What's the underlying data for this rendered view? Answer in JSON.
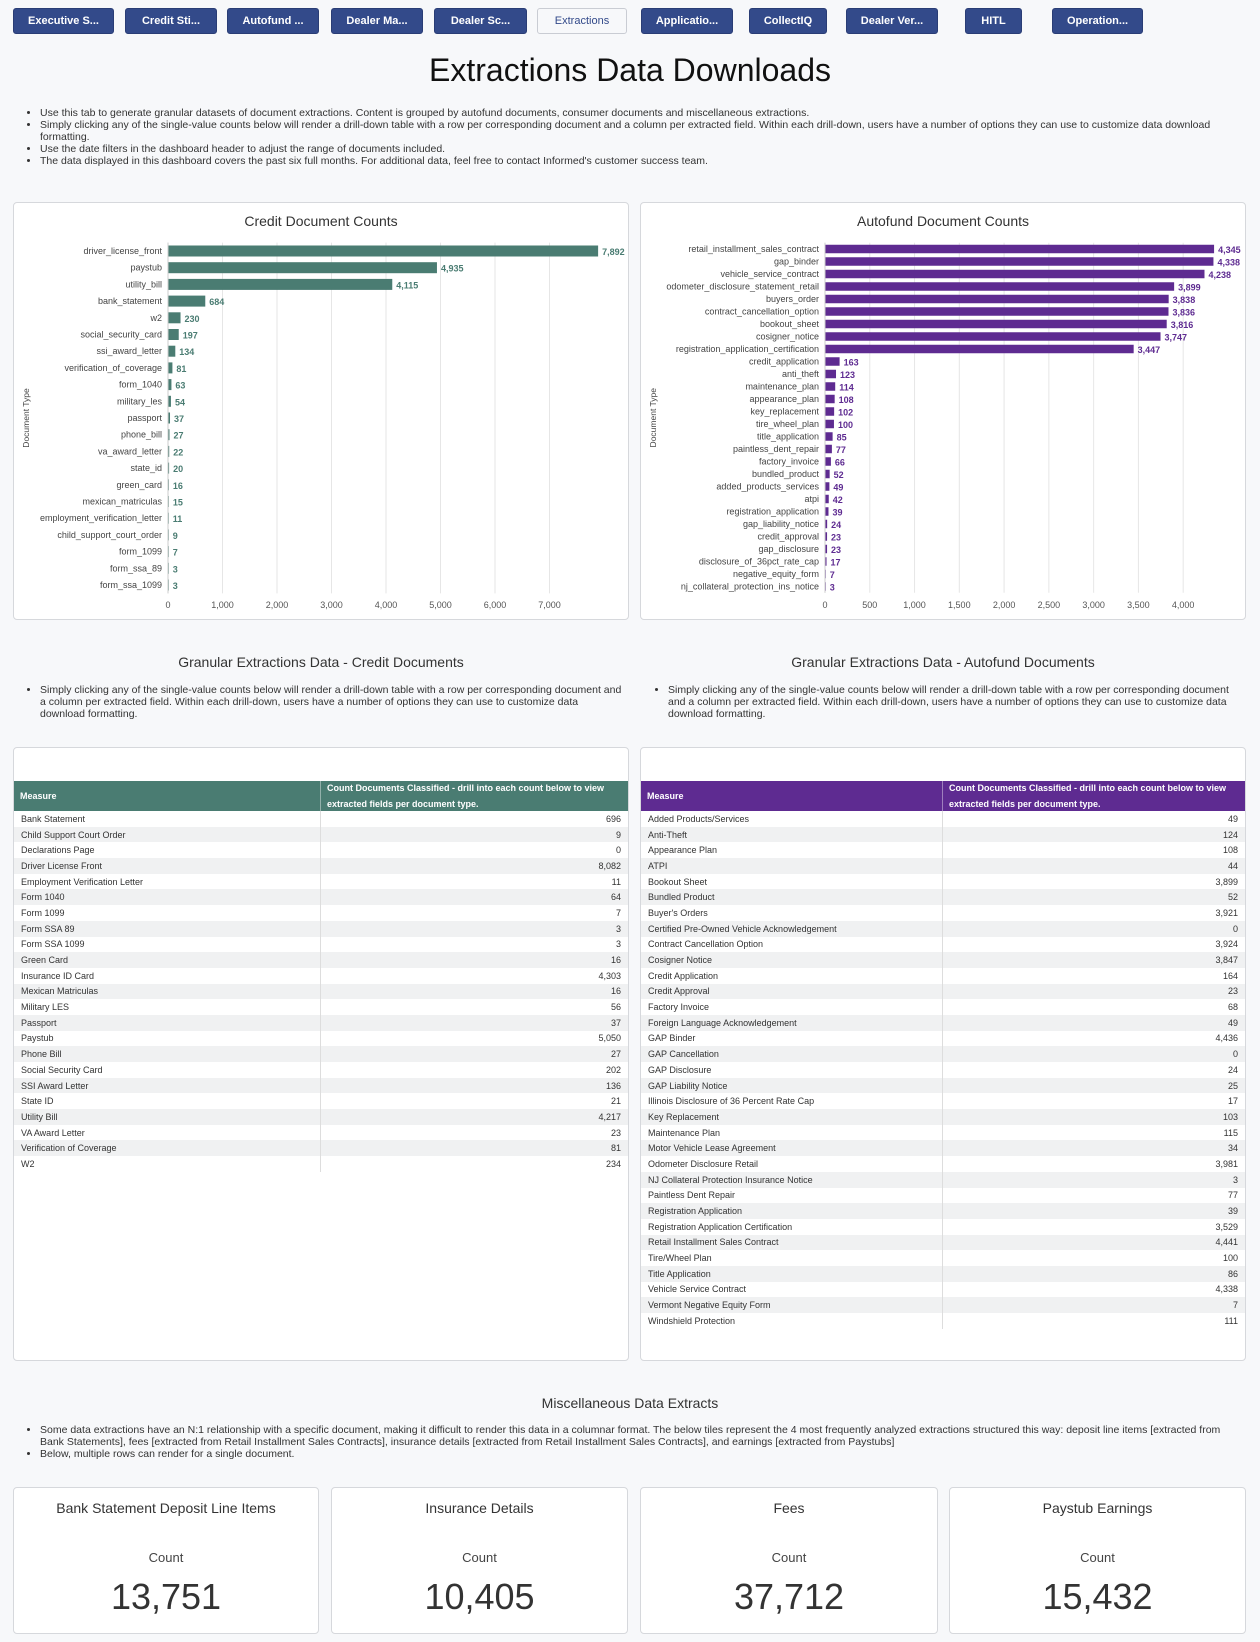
{
  "nav": {
    "tabs": [
      {
        "label": "Executive S..."
      },
      {
        "label": "Credit Sti..."
      },
      {
        "label": "Autofund ..."
      },
      {
        "label": "Dealer Ma..."
      },
      {
        "label": "Dealer Sc..."
      },
      {
        "label": "Extractions",
        "active": true
      },
      {
        "label": "Applicatio..."
      },
      {
        "label": "CollectIQ"
      },
      {
        "label": "Dealer Ver..."
      },
      {
        "label": "HITL"
      },
      {
        "label": "Operation..."
      }
    ]
  },
  "page_title": "Extractions Data Downloads",
  "intro": [
    "Use this tab to generate granular datasets of document extractions. Content is grouped by autofund documents, consumer documents and miscellaneous extractions.",
    "Simply clicking any of the single-value counts below will render a drill-down table with a row per corresponding document and a column per extracted field. Within each drill-down, users have a number of options they can use to customize data download formatting.",
    "Use the date filters in the dashboard header to adjust the range of documents included.",
    "The data displayed in this dashboard covers the past six full months. For additional data, feel free to contact Informed's customer success team."
  ],
  "colors": {
    "credit": "#4a7c72",
    "autofund": "#5e2b91",
    "nav": "#334a8a"
  },
  "chart_data": [
    {
      "type": "bar",
      "orientation": "horizontal",
      "title": "Credit Document Counts",
      "ylabel": "Document Type",
      "xlabel": "",
      "xlim": [
        0,
        8000
      ],
      "xticks": [
        "0",
        "1,000",
        "2,000",
        "3,000",
        "4,000",
        "5,000",
        "6,000",
        "7,000"
      ],
      "grid": true,
      "categories": [
        "driver_license_front",
        "paystub",
        "utility_bill",
        "bank_statement",
        "w2",
        "social_security_card",
        "ssi_award_letter",
        "verification_of_coverage",
        "form_1040",
        "military_les",
        "passport",
        "phone_bill",
        "va_award_letter",
        "state_id",
        "green_card",
        "mexican_matriculas",
        "employment_verification_letter",
        "child_support_court_order",
        "form_1099",
        "form_ssa_89",
        "form_ssa_1099"
      ],
      "values": [
        7892,
        4935,
        4115,
        684,
        230,
        197,
        134,
        81,
        63,
        54,
        37,
        27,
        22,
        20,
        16,
        15,
        11,
        9,
        7,
        3,
        3
      ],
      "value_labels": [
        "7,892",
        "4,935",
        "4,115",
        "684",
        "230",
        "197",
        "134",
        "81",
        "63",
        "54",
        "37",
        "27",
        "22",
        "20",
        "16",
        "15",
        "11",
        "9",
        "7",
        "3",
        "3"
      ]
    },
    {
      "type": "bar",
      "orientation": "horizontal",
      "title": "Autofund Document Counts",
      "ylabel": "Document Type",
      "xlabel": "",
      "xlim": [
        0,
        4400
      ],
      "xticks": [
        "0",
        "500",
        "1,000",
        "1,500",
        "2,000",
        "2,500",
        "3,000",
        "3,500",
        "4,000"
      ],
      "grid": true,
      "categories": [
        "retail_installment_sales_contract",
        "gap_binder",
        "vehicle_service_contract",
        "odometer_disclosure_statement_retail",
        "buyers_order",
        "contract_cancellation_option",
        "bookout_sheet",
        "cosigner_notice",
        "registration_application_certification",
        "credit_application",
        "anti_theft",
        "maintenance_plan",
        "appearance_plan",
        "key_replacement",
        "tire_wheel_plan",
        "title_application",
        "paintless_dent_repair",
        "factory_invoice",
        "bundled_product",
        "added_products_services",
        "atpi",
        "registration_application",
        "gap_liability_notice",
        "credit_approval",
        "gap_disclosure",
        "disclosure_of_36pct_rate_cap",
        "negative_equity_form",
        "nj_collateral_protection_ins_notice"
      ],
      "values": [
        4345,
        4338,
        4238,
        3899,
        3838,
        3836,
        3816,
        3747,
        3447,
        163,
        123,
        114,
        108,
        102,
        100,
        85,
        77,
        66,
        52,
        49,
        42,
        39,
        24,
        23,
        23,
        17,
        7,
        3
      ],
      "value_labels": [
        "4,345",
        "4,338",
        "4,238",
        "3,899",
        "3,838",
        "3,836",
        "3,816",
        "3,747",
        "3,447",
        "163",
        "123",
        "114",
        "108",
        "102",
        "100",
        "85",
        "77",
        "66",
        "52",
        "49",
        "42",
        "39",
        "24",
        "23",
        "23",
        "17",
        "7",
        "3"
      ]
    }
  ],
  "credit_section": {
    "title": "Granular Extractions Data - Credit Documents",
    "note": "Simply clicking any of the single-value counts below will render a drill-down table with a row per corresponding document and a column per extracted field. Within each drill-down, users have a number of options they can use to customize data download formatting.",
    "headers": [
      "Measure",
      "Count Documents Classified - drill into each count below to view extracted fields per document type."
    ],
    "rows": [
      [
        "Bank Statement",
        "696"
      ],
      [
        "Child Support Court Order",
        "9"
      ],
      [
        "Declarations Page",
        "0"
      ],
      [
        "Driver License Front",
        "8,082"
      ],
      [
        "Employment Verification Letter",
        "11"
      ],
      [
        "Form 1040",
        "64"
      ],
      [
        "Form 1099",
        "7"
      ],
      [
        "Form SSA 89",
        "3"
      ],
      [
        "Form SSA 1099",
        "3"
      ],
      [
        "Green Card",
        "16"
      ],
      [
        "Insurance ID Card",
        "4,303"
      ],
      [
        "Mexican Matriculas",
        "16"
      ],
      [
        "Military LES",
        "56"
      ],
      [
        "Passport",
        "37"
      ],
      [
        "Paystub",
        "5,050"
      ],
      [
        "Phone Bill",
        "27"
      ],
      [
        "Social Security Card",
        "202"
      ],
      [
        "SSI Award Letter",
        "136"
      ],
      [
        "State ID",
        "21"
      ],
      [
        "Utility Bill",
        "4,217"
      ],
      [
        "VA Award Letter",
        "23"
      ],
      [
        "Verification of Coverage",
        "81"
      ],
      [
        "W2",
        "234"
      ]
    ]
  },
  "autofund_section": {
    "title": "Granular Extractions Data - Autofund Documents",
    "note": "Simply clicking any of the single-value counts below will render a drill-down table with a row per corresponding document and a column per extracted field. Within each drill-down, users have a number of options they can use to customize data download formatting.",
    "headers": [
      "Measure",
      "Count Documents Classified - drill into each count below to view extracted fields per document type."
    ],
    "rows": [
      [
        "Added Products/Services",
        "49"
      ],
      [
        "Anti-Theft",
        "124"
      ],
      [
        "Appearance Plan",
        "108"
      ],
      [
        "ATPI",
        "44"
      ],
      [
        "Bookout Sheet",
        "3,899"
      ],
      [
        "Bundled Product",
        "52"
      ],
      [
        "Buyer's Orders",
        "3,921"
      ],
      [
        "Certified Pre-Owned Vehicle Acknowledgement",
        "0"
      ],
      [
        "Contract Cancellation Option",
        "3,924"
      ],
      [
        "Cosigner Notice",
        "3,847"
      ],
      [
        "Credit Application",
        "164"
      ],
      [
        "Credit Approval",
        "23"
      ],
      [
        "Factory Invoice",
        "68"
      ],
      [
        "Foreign Language Acknowledgement",
        "49"
      ],
      [
        "GAP Binder",
        "4,436"
      ],
      [
        "GAP Cancellation",
        "0"
      ],
      [
        "GAP Disclosure",
        "24"
      ],
      [
        "GAP Liability Notice",
        "25"
      ],
      [
        "Illinois Disclosure of 36 Percent Rate Cap",
        "17"
      ],
      [
        "Key Replacement",
        "103"
      ],
      [
        "Maintenance Plan",
        "115"
      ],
      [
        "Motor Vehicle Lease Agreement",
        "34"
      ],
      [
        "Odometer Disclosure Retail",
        "3,981"
      ],
      [
        "NJ Collateral Protection Insurance Notice",
        "3"
      ],
      [
        "Paintless Dent Repair",
        "77"
      ],
      [
        "Registration Application",
        "39"
      ],
      [
        "Registration Application Certification",
        "3,529"
      ],
      [
        "Retail Installment Sales Contract",
        "4,441"
      ],
      [
        "Tire/Wheel Plan",
        "100"
      ],
      [
        "Title Application",
        "86"
      ],
      [
        "Vehicle Service Contract",
        "4,338"
      ],
      [
        "Vermont Negative Equity Form",
        "7"
      ],
      [
        "Windshield Protection",
        "111"
      ]
    ]
  },
  "misc": {
    "title": "Miscellaneous Data Extracts",
    "notes": [
      "Some data extractions have an N:1 relationship with a specific document, making it difficult to render this data in a columnar format. The below tiles represent the 4 most frequently analyzed extractions structured this way: deposit line items [extracted from Bank Statements], fees [extracted from Retail Installment Sales Contracts], insurance details [extracted from Retail Installment Sales Contracts], and earnings [extracted from Paystubs]",
      "Below, multiple rows can render for a single document."
    ],
    "tiles": [
      {
        "title": "Bank Statement Deposit Line Items",
        "label": "Count",
        "value": "13,751"
      },
      {
        "title": "Insurance Details",
        "label": "Count",
        "value": "10,405"
      },
      {
        "title": "Fees",
        "label": "Count",
        "value": "37,712"
      },
      {
        "title": "Paystub Earnings",
        "label": "Count",
        "value": "15,432"
      }
    ]
  }
}
